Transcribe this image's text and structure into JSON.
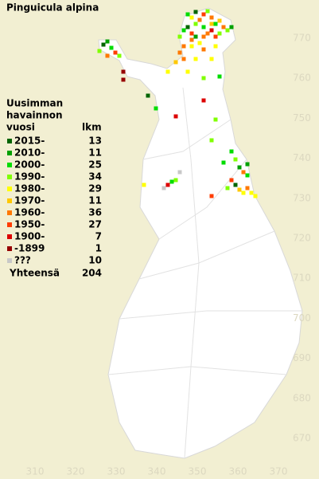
{
  "title": "Pinguicula alpina",
  "legend": {
    "heading": [
      "Uusimman",
      "havainnon",
      "vuosi"
    ],
    "count_heading": "lkm",
    "items": [
      {
        "label": "2015-",
        "count": 13,
        "color": "#006400"
      },
      {
        "label": "2010-",
        "count": 11,
        "color": "#00a000"
      },
      {
        "label": "2000-",
        "count": 25,
        "color": "#00dc00"
      },
      {
        "label": "1990-",
        "count": 34,
        "color": "#80ff00"
      },
      {
        "label": "1980-",
        "count": 29,
        "color": "#ffff00"
      },
      {
        "label": "1970-",
        "count": 11,
        "color": "#ffc800"
      },
      {
        "label": "1960-",
        "count": 36,
        "color": "#ff7800"
      },
      {
        "label": "1950-",
        "count": 27,
        "color": "#ff3c00"
      },
      {
        "label": "1900-",
        "count": 7,
        "color": "#dc0000"
      },
      {
        "label": "-1899",
        "count": 1,
        "color": "#960000"
      },
      {
        "label": "???",
        "count": 10,
        "color": "#c8c8c8"
      }
    ],
    "total_label": "Yhteensä",
    "total": 204
  },
  "x_axis": [
    310,
    320,
    330,
    340,
    350,
    360,
    370
  ],
  "y_axis": [
    670,
    680,
    690,
    700,
    710,
    720,
    730,
    740,
    750,
    760,
    770
  ]
}
